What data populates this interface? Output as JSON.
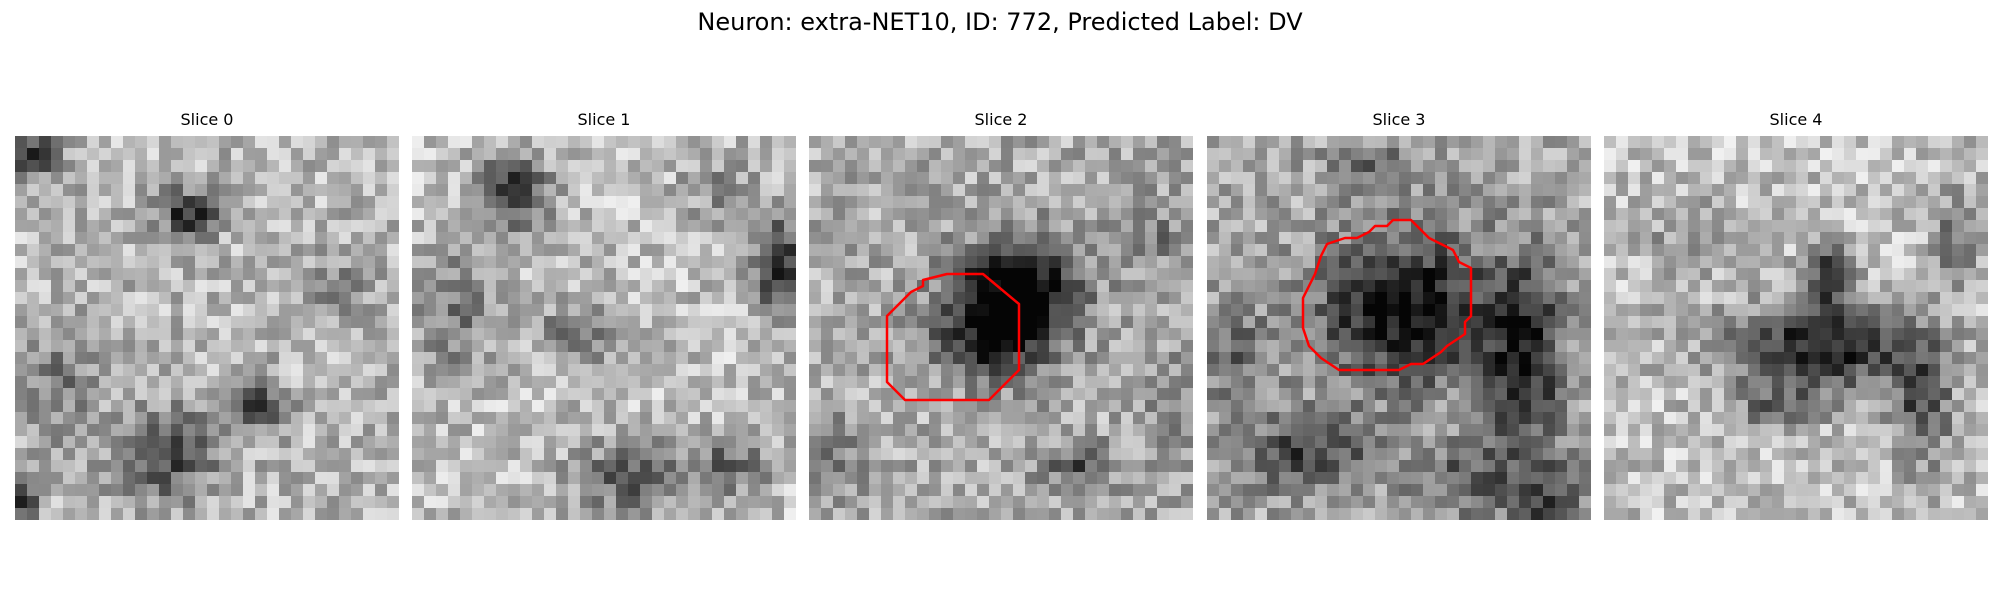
{
  "figure": {
    "title": "Neuron: extra-NET10, ID: 772, Predicted Label: DV"
  },
  "panels": [
    {
      "title": "Slice 0",
      "has_contour": false
    },
    {
      "title": "Slice 1",
      "has_contour": false
    },
    {
      "title": "Slice 2",
      "has_contour": true
    },
    {
      "title": "Slice 3",
      "has_contour": true
    },
    {
      "title": "Slice 4",
      "has_contour": false
    }
  ],
  "colors": {
    "contour": "#ff0000",
    "colormap": "gray"
  }
}
